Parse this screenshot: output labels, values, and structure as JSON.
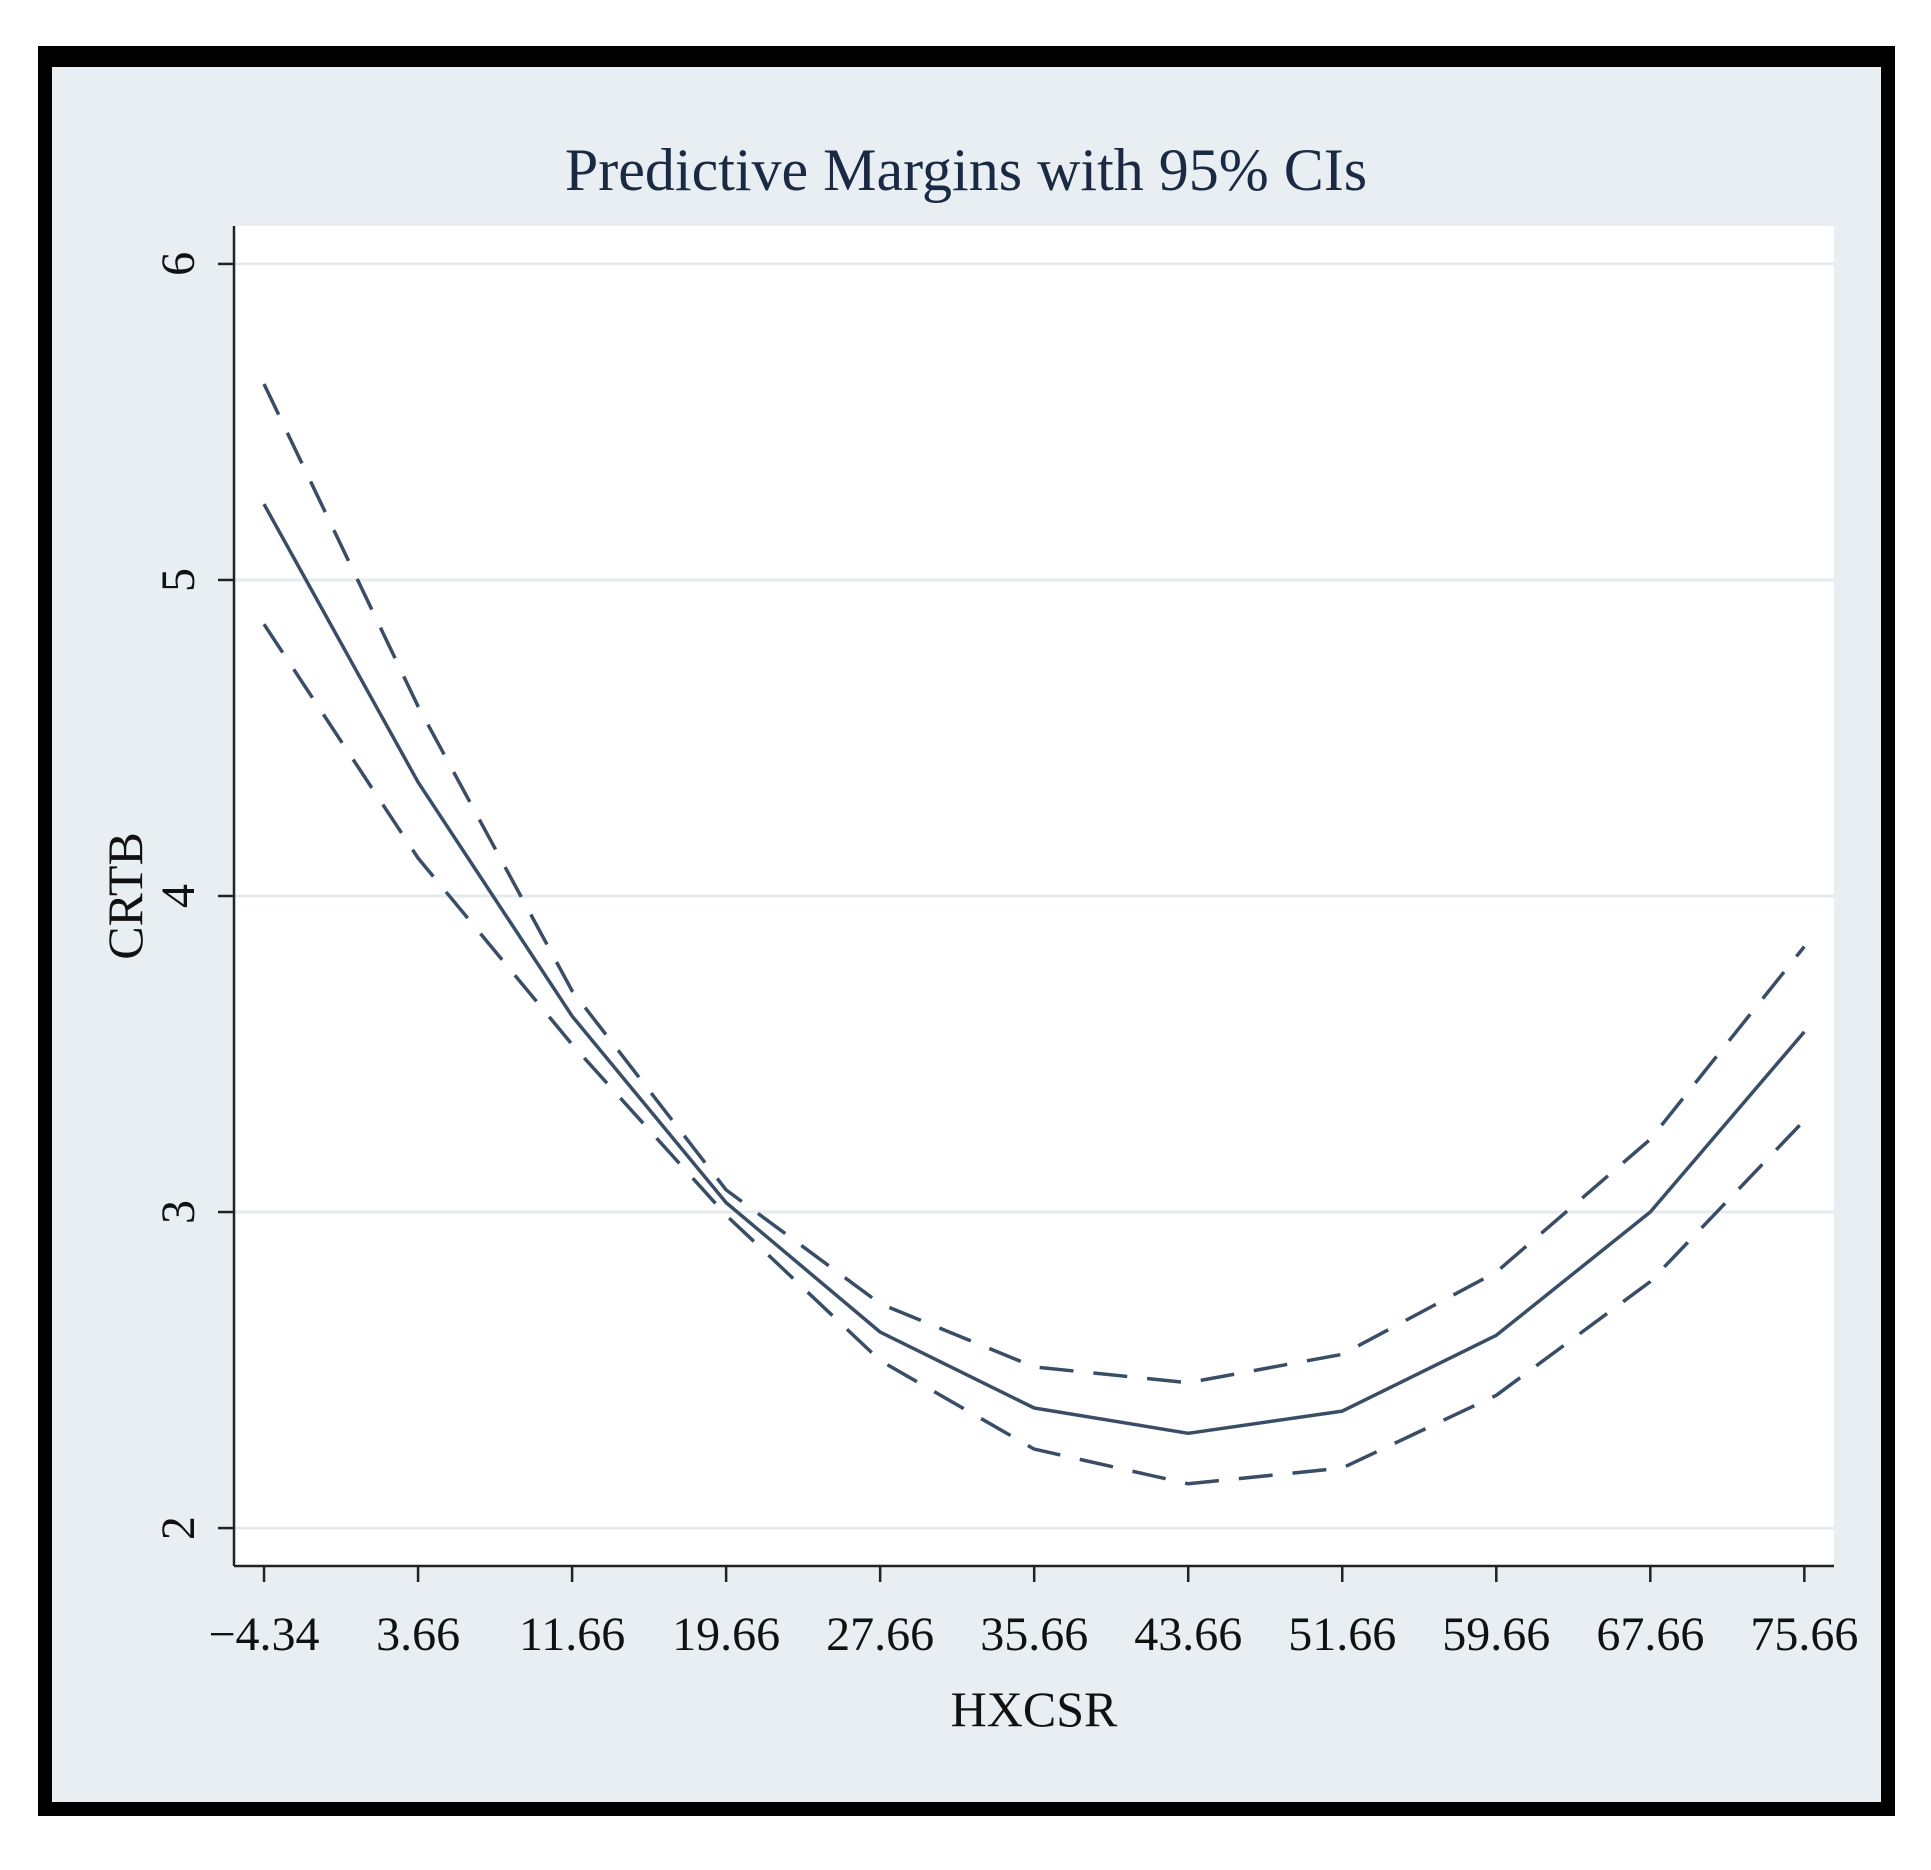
{
  "chart_data": {
    "type": "line",
    "title": "Predictive Margins with 95% CIs",
    "xlabel": "HXCSR",
    "ylabel": "CRTB",
    "x": [
      -4.34,
      3.66,
      11.66,
      19.66,
      27.66,
      35.66,
      43.66,
      51.66,
      59.66,
      67.66,
      75.66
    ],
    "x_tick_labels": [
      "−4.34",
      "3.66",
      "11.66",
      "19.66",
      "27.66",
      "35.66",
      "43.66",
      "51.66",
      "59.66",
      "67.66",
      "75.66"
    ],
    "y_ticks": [
      2,
      3,
      4,
      5,
      6
    ],
    "xlim": [
      -5.9,
      77.2
    ],
    "ylim": [
      1.88,
      6.12
    ],
    "grid": true,
    "series": [
      {
        "name": "Margin",
        "style": "solid",
        "values": [
          5.24,
          4.36,
          3.62,
          3.03,
          2.62,
          2.38,
          2.3,
          2.37,
          2.61,
          3.0,
          3.57
        ]
      },
      {
        "name": "Upper 95% CI",
        "style": "dashed",
        "values": [
          5.62,
          4.6,
          3.7,
          3.07,
          2.71,
          2.51,
          2.46,
          2.55,
          2.81,
          3.23,
          3.84
        ]
      },
      {
        "name": "Lower 95% CI",
        "style": "dashed",
        "values": [
          4.86,
          4.12,
          3.53,
          2.99,
          2.53,
          2.25,
          2.14,
          2.19,
          2.42,
          2.78,
          3.29
        ]
      }
    ],
    "colors": {
      "line": "#3a4d66",
      "grid": "#ffffff",
      "plot_bg": "#ffffff",
      "axis": "#222222"
    }
  }
}
